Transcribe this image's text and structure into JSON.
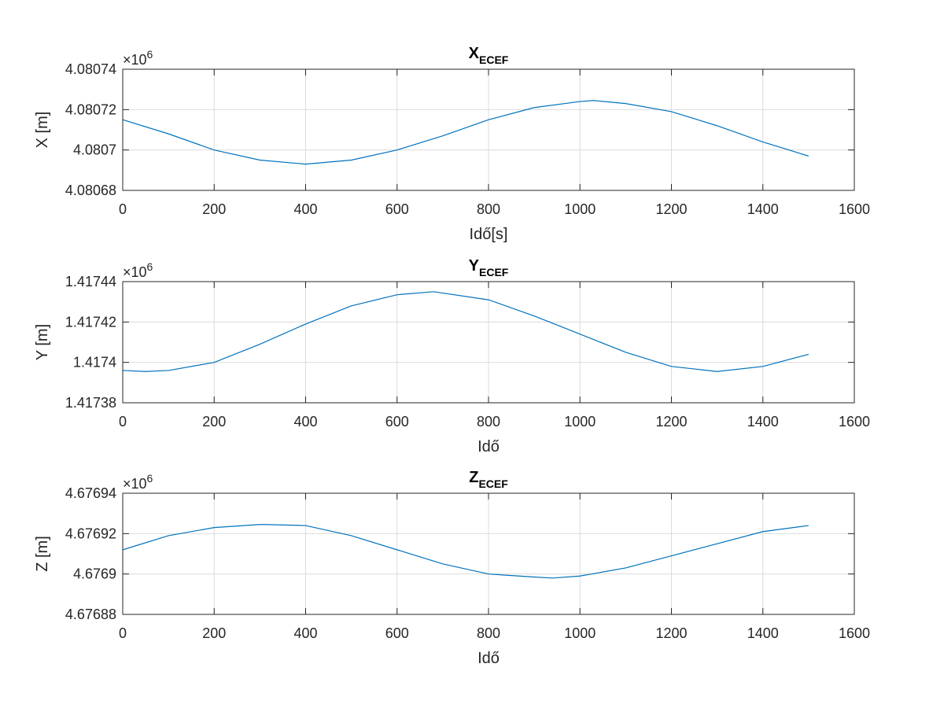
{
  "chart_data": [
    {
      "type": "line",
      "title": "X",
      "title_subscript": "ECEF",
      "xlabel": "Idő[s]",
      "ylabel": "X [m]",
      "exponent_label": "×10",
      "exponent": "6",
      "xlim": [
        0,
        1600
      ],
      "ylim": [
        4.08068,
        4.08074
      ],
      "xticks": [
        "0",
        "200",
        "400",
        "600",
        "800",
        "1000",
        "1200",
        "1400",
        "1600"
      ],
      "xtick_values": [
        0,
        200,
        400,
        600,
        800,
        1000,
        1200,
        1400,
        1600
      ],
      "yticks": [
        "4.08068",
        "4.0807",
        "4.08072",
        "4.08074"
      ],
      "ytick_values": [
        4.08068,
        4.0807,
        4.08072,
        4.08074
      ],
      "grid": true,
      "line_color": "#0072BD",
      "series": [
        {
          "x": [
            0,
            100,
            200,
            300,
            400,
            500,
            600,
            700,
            800,
            900,
            1000,
            1030,
            1100,
            1200,
            1300,
            1400,
            1500
          ],
          "y": [
            4.080715,
            4.080708,
            4.0807,
            4.080695,
            4.080693,
            4.080695,
            4.0807,
            4.080707,
            4.080715,
            4.080721,
            4.080724,
            4.0807245,
            4.080723,
            4.080719,
            4.080712,
            4.080704,
            4.080697
          ]
        }
      ]
    },
    {
      "type": "line",
      "title": "Y",
      "title_subscript": "ECEF",
      "xlabel": "Idő",
      "ylabel": "Y [m]",
      "exponent_label": "×10",
      "exponent": "6",
      "xlim": [
        0,
        1600
      ],
      "ylim": [
        1.41738,
        1.41744
      ],
      "xticks": [
        "0",
        "200",
        "400",
        "600",
        "800",
        "1000",
        "1200",
        "1400",
        "1600"
      ],
      "xtick_values": [
        0,
        200,
        400,
        600,
        800,
        1000,
        1200,
        1400,
        1600
      ],
      "yticks": [
        "1.41738",
        "1.4174",
        "1.41742",
        "1.41744"
      ],
      "ytick_values": [
        1.41738,
        1.4174,
        1.41742,
        1.41744
      ],
      "grid": true,
      "line_color": "#0072BD",
      "series": [
        {
          "x": [
            0,
            50,
            100,
            200,
            300,
            400,
            500,
            600,
            680,
            800,
            900,
            1000,
            1100,
            1200,
            1300,
            1400,
            1500
          ],
          "y": [
            1.417396,
            1.4173955,
            1.417396,
            1.4174,
            1.417409,
            1.417419,
            1.417428,
            1.4174335,
            1.417435,
            1.417431,
            1.417423,
            1.417414,
            1.417405,
            1.417398,
            1.4173955,
            1.417398,
            1.417404
          ]
        }
      ]
    },
    {
      "type": "line",
      "title": "Z",
      "title_subscript": "ECEF",
      "xlabel": "Idő",
      "ylabel": "Z [m]",
      "exponent_label": "×10",
      "exponent": "6",
      "xlim": [
        0,
        1600
      ],
      "ylim": [
        4.67688,
        4.67694
      ],
      "xticks": [
        "0",
        "200",
        "400",
        "600",
        "800",
        "1000",
        "1200",
        "1400",
        "1600"
      ],
      "xtick_values": [
        0,
        200,
        400,
        600,
        800,
        1000,
        1200,
        1400,
        1600
      ],
      "yticks": [
        "4.67688",
        "4.6769",
        "4.67692",
        "4.67694"
      ],
      "ytick_values": [
        4.67688,
        4.6769,
        4.67692,
        4.67694
      ],
      "grid": true,
      "line_color": "#0072BD",
      "series": [
        {
          "x": [
            0,
            100,
            200,
            300,
            310,
            400,
            500,
            600,
            700,
            800,
            900,
            940,
            1000,
            1100,
            1200,
            1300,
            1400,
            1500
          ],
          "y": [
            4.676912,
            4.676919,
            4.676923,
            4.6769245,
            4.6769245,
            4.676924,
            4.676919,
            4.676912,
            4.676905,
            4.6769,
            4.6768985,
            4.676898,
            4.676899,
            4.676903,
            4.676909,
            4.676915,
            4.676921,
            4.676924
          ]
        }
      ]
    }
  ]
}
